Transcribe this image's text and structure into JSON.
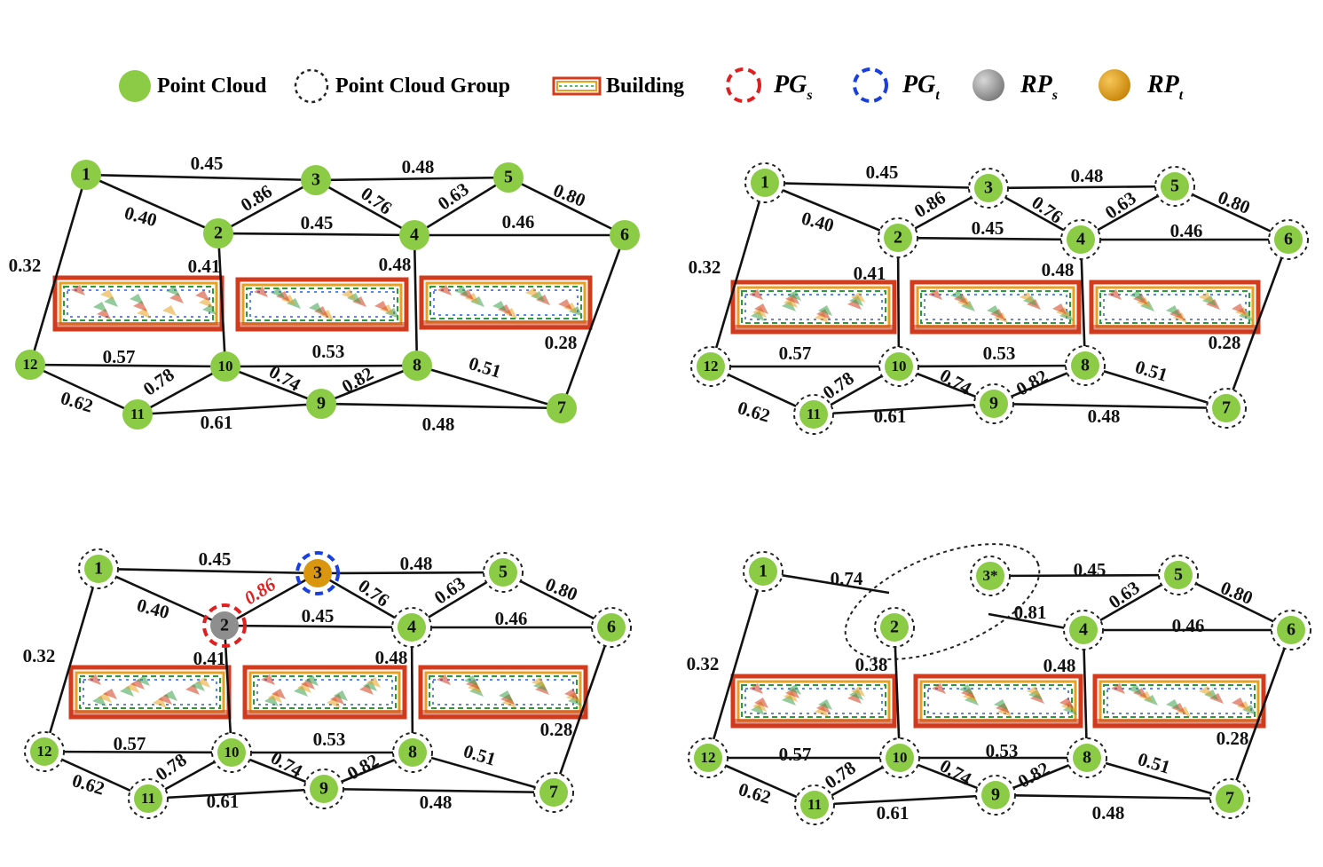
{
  "legend": {
    "point_cloud": "Point Cloud",
    "point_cloud_group": "Point Cloud Group",
    "building": "Building",
    "pg_s": {
      "main": "PG",
      "sub": "s"
    },
    "pg_t": {
      "main": "PG",
      "sub": "t"
    },
    "rp_s": {
      "main": "RP",
      "sub": "s"
    },
    "rp_t": {
      "main": "RP",
      "sub": "t"
    }
  },
  "colors": {
    "node_green": "#8BCB45",
    "rp_source": "#8E8E8E",
    "rp_target": "#D9960E",
    "pg_source_ring": "#E02020",
    "pg_target_ring": "#1A3FE0",
    "edge": "#111111",
    "building_border": "#D43A1C",
    "highlight_weight": "#E02020"
  },
  "panels": [
    {
      "id": "a",
      "nodes": [
        {
          "label": "1"
        },
        {
          "label": "2"
        },
        {
          "label": "3"
        },
        {
          "label": "4"
        },
        {
          "label": "5"
        },
        {
          "label": "6"
        },
        {
          "label": "7"
        },
        {
          "label": "8"
        },
        {
          "label": "9"
        },
        {
          "label": "10"
        },
        {
          "label": "11"
        },
        {
          "label": "12"
        }
      ],
      "edges": [
        {
          "from": "1",
          "to": "3",
          "w": "0.45"
        },
        {
          "from": "1",
          "to": "2",
          "w": "0.40"
        },
        {
          "from": "2",
          "to": "3",
          "w": "0.86"
        },
        {
          "from": "3",
          "to": "5",
          "w": "0.48"
        },
        {
          "from": "3",
          "to": "4",
          "w": "0.76"
        },
        {
          "from": "4",
          "to": "5",
          "w": "0.63"
        },
        {
          "from": "5",
          "to": "6",
          "w": "0.80"
        },
        {
          "from": "2",
          "to": "4",
          "w": "0.45"
        },
        {
          "from": "4",
          "to": "6",
          "w": "0.46"
        },
        {
          "from": "1",
          "to": "12",
          "w": "0.32"
        },
        {
          "from": "2",
          "to": "10",
          "w": "0.41"
        },
        {
          "from": "4",
          "to": "8",
          "w": "0.48"
        },
        {
          "from": "6",
          "to": "7",
          "w": "0.28"
        },
        {
          "from": "12",
          "to": "10",
          "w": "0.57"
        },
        {
          "from": "10",
          "to": "8",
          "w": "0.53"
        },
        {
          "from": "8",
          "to": "7",
          "w": "0.51"
        },
        {
          "from": "12",
          "to": "11",
          "w": "0.62"
        },
        {
          "from": "11",
          "to": "10",
          "w": "0.78"
        },
        {
          "from": "10",
          "to": "9",
          "w": "0.74"
        },
        {
          "from": "9",
          "to": "8",
          "w": "0.82"
        },
        {
          "from": "11",
          "to": "9",
          "w": "0.61"
        },
        {
          "from": "9",
          "to": "7",
          "w": "0.48"
        }
      ]
    },
    {
      "id": "b",
      "nodes": [
        {
          "label": "1"
        },
        {
          "label": "2"
        },
        {
          "label": "3"
        },
        {
          "label": "4"
        },
        {
          "label": "5"
        },
        {
          "label": "6"
        },
        {
          "label": "7"
        },
        {
          "label": "8"
        },
        {
          "label": "9"
        },
        {
          "label": "10"
        },
        {
          "label": "11"
        },
        {
          "label": "12"
        }
      ],
      "edges": [
        {
          "from": "1",
          "to": "3",
          "w": "0.45"
        },
        {
          "from": "1",
          "to": "2",
          "w": "0.40"
        },
        {
          "from": "2",
          "to": "3",
          "w": "0.86"
        },
        {
          "from": "3",
          "to": "5",
          "w": "0.48"
        },
        {
          "from": "3",
          "to": "4",
          "w": "0.76"
        },
        {
          "from": "4",
          "to": "5",
          "w": "0.63"
        },
        {
          "from": "5",
          "to": "6",
          "w": "0.80"
        },
        {
          "from": "2",
          "to": "4",
          "w": "0.45"
        },
        {
          "from": "4",
          "to": "6",
          "w": "0.46"
        },
        {
          "from": "1",
          "to": "12",
          "w": "0.32"
        },
        {
          "from": "2",
          "to": "10",
          "w": "0.41"
        },
        {
          "from": "4",
          "to": "8",
          "w": "0.48"
        },
        {
          "from": "6",
          "to": "7",
          "w": "0.28"
        },
        {
          "from": "12",
          "to": "10",
          "w": "0.57"
        },
        {
          "from": "10",
          "to": "8",
          "w": "0.53"
        },
        {
          "from": "8",
          "to": "7",
          "w": "0.51"
        },
        {
          "from": "12",
          "to": "11",
          "w": "0.62"
        },
        {
          "from": "11",
          "to": "10",
          "w": "0.78"
        },
        {
          "from": "10",
          "to": "9",
          "w": "0.74"
        },
        {
          "from": "9",
          "to": "8",
          "w": "0.82"
        },
        {
          "from": "11",
          "to": "9",
          "w": "0.61"
        },
        {
          "from": "9",
          "to": "7",
          "w": "0.48"
        }
      ]
    },
    {
      "id": "c",
      "nodes": [
        {
          "label": "1"
        },
        {
          "label": "2"
        },
        {
          "label": "3"
        },
        {
          "label": "4"
        },
        {
          "label": "5"
        },
        {
          "label": "6"
        },
        {
          "label": "7"
        },
        {
          "label": "8"
        },
        {
          "label": "9"
        },
        {
          "label": "10"
        },
        {
          "label": "11"
        },
        {
          "label": "12"
        }
      ],
      "edges": [
        {
          "from": "1",
          "to": "3",
          "w": "0.45"
        },
        {
          "from": "1",
          "to": "2",
          "w": "0.40"
        },
        {
          "from": "2",
          "to": "3",
          "w": "0.86",
          "highlight": true
        },
        {
          "from": "3",
          "to": "5",
          "w": "0.48"
        },
        {
          "from": "3",
          "to": "4",
          "w": "0.76"
        },
        {
          "from": "4",
          "to": "5",
          "w": "0.63"
        },
        {
          "from": "5",
          "to": "6",
          "w": "0.80"
        },
        {
          "from": "2",
          "to": "4",
          "w": "0.45"
        },
        {
          "from": "4",
          "to": "6",
          "w": "0.46"
        },
        {
          "from": "1",
          "to": "12",
          "w": "0.32"
        },
        {
          "from": "2",
          "to": "10",
          "w": "0.41"
        },
        {
          "from": "4",
          "to": "8",
          "w": "0.48"
        },
        {
          "from": "6",
          "to": "7",
          "w": "0.28"
        },
        {
          "from": "12",
          "to": "10",
          "w": "0.57"
        },
        {
          "from": "10",
          "to": "8",
          "w": "0.53"
        },
        {
          "from": "8",
          "to": "7",
          "w": "0.51"
        },
        {
          "from": "12",
          "to": "11",
          "w": "0.62"
        },
        {
          "from": "11",
          "to": "10",
          "w": "0.78"
        },
        {
          "from": "10",
          "to": "9",
          "w": "0.74"
        },
        {
          "from": "9",
          "to": "8",
          "w": "0.82"
        },
        {
          "from": "11",
          "to": "9",
          "w": "0.61"
        },
        {
          "from": "9",
          "to": "7",
          "w": "0.48"
        }
      ]
    },
    {
      "id": "d",
      "nodes": [
        {
          "label": "1"
        },
        {
          "label": "2"
        },
        {
          "label": "3*"
        },
        {
          "label": "4"
        },
        {
          "label": "5"
        },
        {
          "label": "6"
        },
        {
          "label": "7"
        },
        {
          "label": "8"
        },
        {
          "label": "9"
        },
        {
          "label": "10"
        },
        {
          "label": "11"
        },
        {
          "label": "12"
        }
      ],
      "edges": [
        {
          "from": "1",
          "to": "3*",
          "w": "0.74"
        },
        {
          "from": "3*",
          "to": "5",
          "w": "0.45"
        },
        {
          "from": "3*",
          "to": "4",
          "w": "0.81"
        },
        {
          "from": "4",
          "to": "5",
          "w": "0.63"
        },
        {
          "from": "5",
          "to": "6",
          "w": "0.80"
        },
        {
          "from": "4",
          "to": "6",
          "w": "0.46"
        },
        {
          "from": "1",
          "to": "12",
          "w": "0.32"
        },
        {
          "from": "2",
          "to": "10",
          "w": "0.38"
        },
        {
          "from": "4",
          "to": "8",
          "w": "0.48"
        },
        {
          "from": "6",
          "to": "7",
          "w": "0.28"
        },
        {
          "from": "12",
          "to": "10",
          "w": "0.57"
        },
        {
          "from": "10",
          "to": "8",
          "w": "0.53"
        },
        {
          "from": "8",
          "to": "7",
          "w": "0.51"
        },
        {
          "from": "12",
          "to": "11",
          "w": "0.62"
        },
        {
          "from": "11",
          "to": "10",
          "w": "0.78"
        },
        {
          "from": "10",
          "to": "9",
          "w": "0.74"
        },
        {
          "from": "9",
          "to": "8",
          "w": "0.82"
        },
        {
          "from": "11",
          "to": "9",
          "w": "0.61"
        },
        {
          "from": "9",
          "to": "7",
          "w": "0.48"
        }
      ]
    }
  ]
}
